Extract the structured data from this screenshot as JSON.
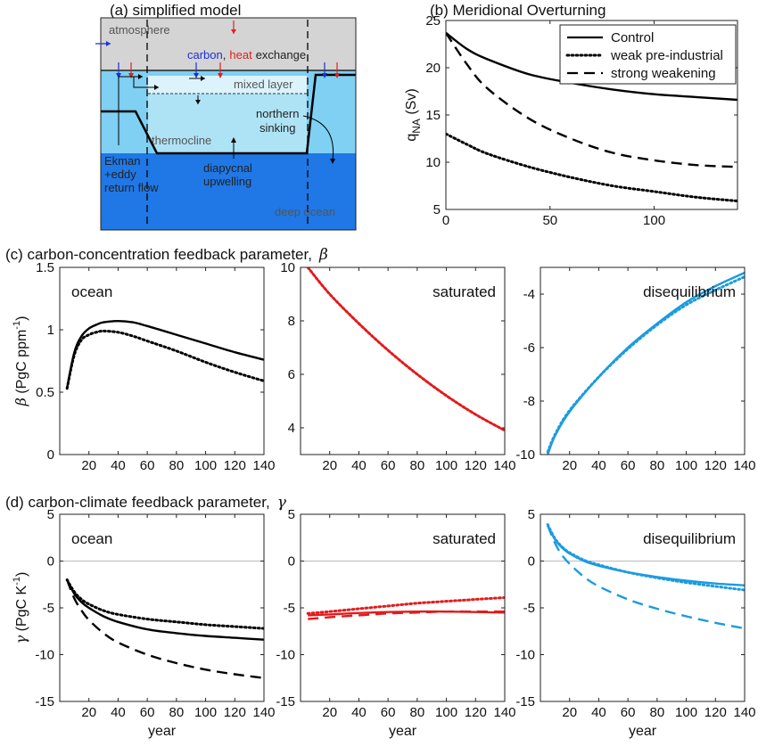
{
  "figure": {
    "panel_a_title": "(a) simplified model",
    "panel_b_title": "(b) Meridional Overturning",
    "panel_c_title": "(c) carbon-concentration feedback parameter,",
    "panel_c_symbol": "β",
    "panel_d_title": "(d) carbon-climate feedback parameter,",
    "panel_d_symbol": "γ",
    "year_label": "year"
  },
  "schematic": {
    "atmosphere": "atmosphere",
    "carbon": "carbon",
    "comma": ",",
    "heat": "heat",
    "exchange": "exchange",
    "mixed_layer": "mixed layer",
    "thermocline": "thermocline",
    "northern": "northern",
    "sinking": "sinking",
    "ekman_1": "Ekman",
    "ekman_2": "+eddy",
    "ekman_3": "return flow",
    "diapycnal_1": "diapycnal",
    "diapycnal_2": "upwelling",
    "deep_ocean": "deep ocean",
    "colors": {
      "atmosphere": "#d4d4d4",
      "mixed_layer": "#dcf3fb",
      "upper_ocean": "#7fd0f2",
      "thermocline": "#aee3f6",
      "deep_ocean": "#1f78e6",
      "carbon": "#1f2fd6",
      "heat": "#e02020"
    }
  },
  "chart_data": [
    {
      "id": "b",
      "type": "line",
      "title": "(b) Meridional Overturning",
      "ylabel_main": "q",
      "ylabel_sub": "NA",
      "ylabel_unit": " (Sv)",
      "xlim": [
        0,
        140
      ],
      "ylim": [
        5,
        25
      ],
      "xticks": [
        0,
        50,
        100
      ],
      "yticks": [
        5,
        10,
        15,
        20,
        25
      ],
      "legend_position": "top-right",
      "series": [
        {
          "name": "Control",
          "style": "solid",
          "color": "#000000",
          "x": [
            0,
            10,
            20,
            40,
            60,
            80,
            100,
            120,
            140
          ],
          "y": [
            23.7,
            22.0,
            20.9,
            19.3,
            18.4,
            17.7,
            17.2,
            16.9,
            16.6
          ]
        },
        {
          "name": "weak pre-industrial",
          "style": "dotted",
          "color": "#000000",
          "x": [
            0,
            10,
            20,
            40,
            60,
            80,
            100,
            120,
            140
          ],
          "y": [
            13.0,
            11.9,
            10.9,
            9.5,
            8.4,
            7.5,
            6.9,
            6.3,
            5.9
          ]
        },
        {
          "name": "strong weakening",
          "style": "dashed",
          "color": "#000000",
          "x": [
            0,
            10,
            20,
            40,
            60,
            80,
            100,
            120,
            140
          ],
          "y": [
            23.7,
            20.4,
            17.8,
            14.6,
            12.5,
            11.0,
            10.2,
            9.7,
            9.5
          ]
        }
      ]
    },
    {
      "id": "c1",
      "type": "line",
      "label": "ocean",
      "label_color": "#000000",
      "ylabel_sym": "β",
      "ylabel": " (PgC ppm",
      "ylabel_sup": "-1",
      "ylabel_end": ")",
      "xlim": [
        0,
        140
      ],
      "ylim": [
        0,
        1.5
      ],
      "xticks": [
        20,
        40,
        60,
        80,
        100,
        120,
        140
      ],
      "yticks": [
        0,
        0.5,
        1,
        1.5
      ],
      "series": [
        {
          "style": "solid",
          "color": "#000000",
          "x": [
            5,
            10,
            15,
            20,
            25,
            30,
            40,
            50,
            60,
            80,
            100,
            120,
            140
          ],
          "y": [
            0.53,
            0.82,
            0.95,
            1.01,
            1.04,
            1.06,
            1.07,
            1.06,
            1.03,
            0.96,
            0.89,
            0.82,
            0.76
          ]
        },
        {
          "style": "dotted",
          "color": "#000000",
          "x": [
            5,
            10,
            15,
            20,
            25,
            30,
            40,
            50,
            60,
            80,
            100,
            120,
            140
          ],
          "y": [
            0.53,
            0.8,
            0.92,
            0.96,
            0.98,
            0.99,
            0.98,
            0.95,
            0.91,
            0.83,
            0.74,
            0.66,
            0.59
          ]
        }
      ]
    },
    {
      "id": "c2",
      "type": "line",
      "label": "saturated",
      "label_color": "#e31a1c",
      "xlim": [
        0,
        140
      ],
      "ylim": [
        3,
        10
      ],
      "xticks": [
        20,
        40,
        60,
        80,
        100,
        120,
        140
      ],
      "yticks": [
        4,
        6,
        8,
        10
      ],
      "series": [
        {
          "style": "solid",
          "color": "#e31a1c",
          "x": [
            5,
            20,
            40,
            60,
            80,
            100,
            120,
            140
          ],
          "y": [
            10.0,
            9.0,
            7.9,
            6.9,
            6.0,
            5.2,
            4.5,
            3.9
          ]
        },
        {
          "style": "dotted",
          "color": "#e31a1c",
          "x": [
            5,
            20,
            40,
            60,
            80,
            100,
            120,
            140
          ],
          "y": [
            10.0,
            9.0,
            7.9,
            6.9,
            6.0,
            5.2,
            4.5,
            3.9
          ]
        }
      ]
    },
    {
      "id": "c3",
      "type": "line",
      "label": "disequilibrium",
      "label_color": "#1b9be0",
      "xlim": [
        0,
        140
      ],
      "ylim": [
        -10,
        -3
      ],
      "xticks": [
        20,
        40,
        60,
        80,
        100,
        120,
        140
      ],
      "yticks": [
        -10,
        -8,
        -6,
        -4
      ],
      "series": [
        {
          "style": "solid",
          "color": "#1b9be0",
          "x": [
            5,
            10,
            20,
            40,
            60,
            80,
            100,
            120,
            140
          ],
          "y": [
            -10.0,
            -9.3,
            -8.4,
            -7.1,
            -6.0,
            -5.1,
            -4.3,
            -3.7,
            -3.2
          ]
        },
        {
          "style": "dotted",
          "color": "#1b9be0",
          "x": [
            5,
            10,
            20,
            40,
            60,
            80,
            100,
            120,
            140
          ],
          "y": [
            -9.9,
            -9.25,
            -8.35,
            -7.1,
            -6.05,
            -5.15,
            -4.4,
            -3.85,
            -3.35
          ]
        }
      ]
    },
    {
      "id": "d1",
      "type": "line",
      "label": "ocean",
      "label_color": "#000000",
      "ylabel_sym": "γ",
      "ylabel": " (PgC K",
      "ylabel_sup": "-1",
      "ylabel_end": ")",
      "xlabel": "year",
      "xlim": [
        0,
        140
      ],
      "ylim": [
        -15,
        5
      ],
      "xticks": [
        20,
        40,
        60,
        80,
        100,
        120,
        140
      ],
      "yticks": [
        -15,
        -10,
        -5,
        0,
        5
      ],
      "zero_line": true,
      "series": [
        {
          "style": "solid",
          "color": "#000000",
          "x": [
            5,
            10,
            15,
            20,
            30,
            40,
            60,
            80,
            100,
            120,
            140
          ],
          "y": [
            -2.0,
            -3.5,
            -4.4,
            -5.0,
            -5.9,
            -6.5,
            -7.3,
            -7.7,
            -8.0,
            -8.2,
            -8.4
          ]
        },
        {
          "style": "dotted",
          "color": "#000000",
          "x": [
            5,
            10,
            15,
            20,
            30,
            40,
            60,
            80,
            100,
            120,
            140
          ],
          "y": [
            -2.0,
            -3.3,
            -4.1,
            -4.6,
            -5.3,
            -5.7,
            -6.2,
            -6.5,
            -6.8,
            -7.0,
            -7.2
          ]
        },
        {
          "style": "dashed",
          "color": "#000000",
          "x": [
            5,
            10,
            15,
            20,
            30,
            40,
            60,
            80,
            100,
            120,
            140
          ],
          "y": [
            -2.0,
            -4.0,
            -5.3,
            -6.3,
            -7.7,
            -8.7,
            -10.0,
            -10.9,
            -11.6,
            -12.1,
            -12.5
          ]
        }
      ]
    },
    {
      "id": "d2",
      "type": "line",
      "label": "saturated",
      "label_color": "#e31a1c",
      "xlabel": "year",
      "xlim": [
        0,
        140
      ],
      "ylim": [
        -15,
        5
      ],
      "xticks": [
        20,
        40,
        60,
        80,
        100,
        120,
        140
      ],
      "yticks": [
        -15,
        -10,
        -5,
        0,
        5
      ],
      "zero_line": true,
      "series": [
        {
          "style": "solid",
          "color": "#e31a1c",
          "x": [
            5,
            20,
            40,
            60,
            80,
            100,
            120,
            140
          ],
          "y": [
            -5.8,
            -5.7,
            -5.55,
            -5.45,
            -5.4,
            -5.4,
            -5.45,
            -5.5
          ]
        },
        {
          "style": "dotted",
          "color": "#e31a1c",
          "x": [
            5,
            20,
            40,
            60,
            80,
            100,
            120,
            140
          ],
          "y": [
            -5.6,
            -5.4,
            -5.1,
            -4.8,
            -4.5,
            -4.3,
            -4.1,
            -3.9
          ]
        },
        {
          "style": "dashed",
          "color": "#e31a1c",
          "x": [
            5,
            20,
            40,
            60,
            80,
            100,
            120,
            140
          ],
          "y": [
            -6.2,
            -6.0,
            -5.8,
            -5.6,
            -5.5,
            -5.4,
            -5.4,
            -5.4
          ]
        }
      ]
    },
    {
      "id": "d3",
      "type": "line",
      "label": "disequilibrium",
      "label_color": "#1b9be0",
      "xlabel": "year",
      "xlim": [
        0,
        140
      ],
      "ylim": [
        -15,
        5
      ],
      "xticks": [
        20,
        40,
        60,
        80,
        100,
        120,
        140
      ],
      "yticks": [
        -15,
        -10,
        -5,
        0,
        5
      ],
      "zero_line": true,
      "series": [
        {
          "style": "solid",
          "color": "#1b9be0",
          "x": [
            5,
            10,
            15,
            20,
            30,
            40,
            60,
            80,
            100,
            120,
            140
          ],
          "y": [
            3.8,
            2.3,
            1.4,
            0.8,
            0.0,
            -0.5,
            -1.2,
            -1.7,
            -2.1,
            -2.4,
            -2.6
          ]
        },
        {
          "style": "dotted",
          "color": "#1b9be0",
          "x": [
            5,
            10,
            15,
            20,
            30,
            40,
            60,
            80,
            100,
            120,
            140
          ],
          "y": [
            3.9,
            2.4,
            1.5,
            0.9,
            0.1,
            -0.4,
            -1.2,
            -1.8,
            -2.3,
            -2.7,
            -3.1
          ]
        },
        {
          "style": "dashed",
          "color": "#1b9be0",
          "x": [
            5,
            10,
            15,
            20,
            30,
            40,
            60,
            80,
            100,
            120,
            140
          ],
          "y": [
            3.8,
            1.9,
            0.6,
            -0.3,
            -1.7,
            -2.7,
            -4.1,
            -5.1,
            -5.9,
            -6.6,
            -7.2
          ]
        }
      ]
    }
  ]
}
